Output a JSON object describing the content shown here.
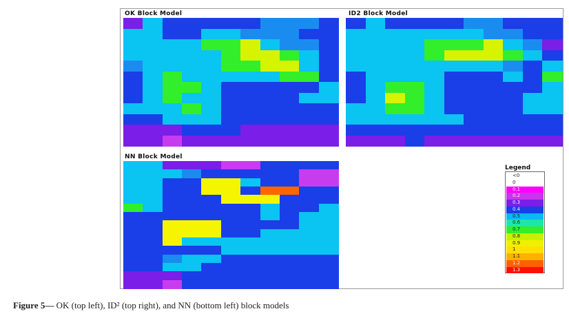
{
  "figure": {
    "panels": [
      {
        "id": "ok",
        "title": "OK Block Model",
        "rows": [
          "36444445554",
          "66446655544",
          "66667786554",
          "66666788764",
          "56666778864",
          "46766666774",
          "46776444446",
          "46766444466",
          "66676444444",
          "44666444444",
          "33344433333",
          "33233333333"
        ]
      },
      {
        "id": "id2",
        "title": "ID2 Block Model",
        "rows": [
          "46444455444",
          "66666665544",
          "66667778653",
          "66667888764",
          "66666666546",
          "46666444647",
          "46776444446",
          "46876444466",
          "66776444466",
          "66666644444",
          "44444444444",
          "33343333333"
        ]
      },
      {
        "id": "nn",
        "title": "NN Block Model",
        "rows": [
          "66333224444",
          "66654444422",
          "66449964422",
          "66449941144",
          "66444999444",
          "76444446446",
          "44444446466",
          "44999444466",
          "44999446666",
          "44966666666",
          "44444666666",
          "44566444444",
          "44664444444",
          "33344444444",
          "33244444444"
        ]
      }
    ],
    "legend": {
      "title": "Legend",
      "items": [
        {
          "label": "<0",
          "color": "#ffffff"
        },
        {
          "label": "0",
          "color": "#ffffff"
        },
        {
          "label": "0.1",
          "color": "#ff00ff"
        },
        {
          "label": "0.2",
          "color": "#cc33ee"
        },
        {
          "label": "0.3",
          "color": "#7a1ee8"
        },
        {
          "label": "0.4",
          "color": "#1a3ee8"
        },
        {
          "label": "0.5",
          "color": "#0ab8f2"
        },
        {
          "label": "0.6",
          "color": "#1ee6a8"
        },
        {
          "label": "0.7",
          "color": "#33ee2a"
        },
        {
          "label": "0.8",
          "color": "#c8f000"
        },
        {
          "label": "0.9",
          "color": "#f0f000"
        },
        {
          "label": "1",
          "color": "#ffe000"
        },
        {
          "label": "1.1",
          "color": "#ffb000"
        },
        {
          "label": "1.2",
          "color": "#ff6000"
        },
        {
          "label": "1.3",
          "color": "#ff1000"
        }
      ]
    },
    "palette": {
      "2": "#c83cf0",
      "3": "#7a1ee8",
      "4": "#1a3ee8",
      "5": "#1a8cf0",
      "6": "#0ac4f2",
      "7": "#33ee2a",
      "8": "#d6f400",
      "9": "#f5f500",
      "1": "#ff6600"
    }
  },
  "caption": {
    "label": "Figure 5—",
    "text": " OK (top left), ID² (top right), and NN (bottom left) block models"
  }
}
